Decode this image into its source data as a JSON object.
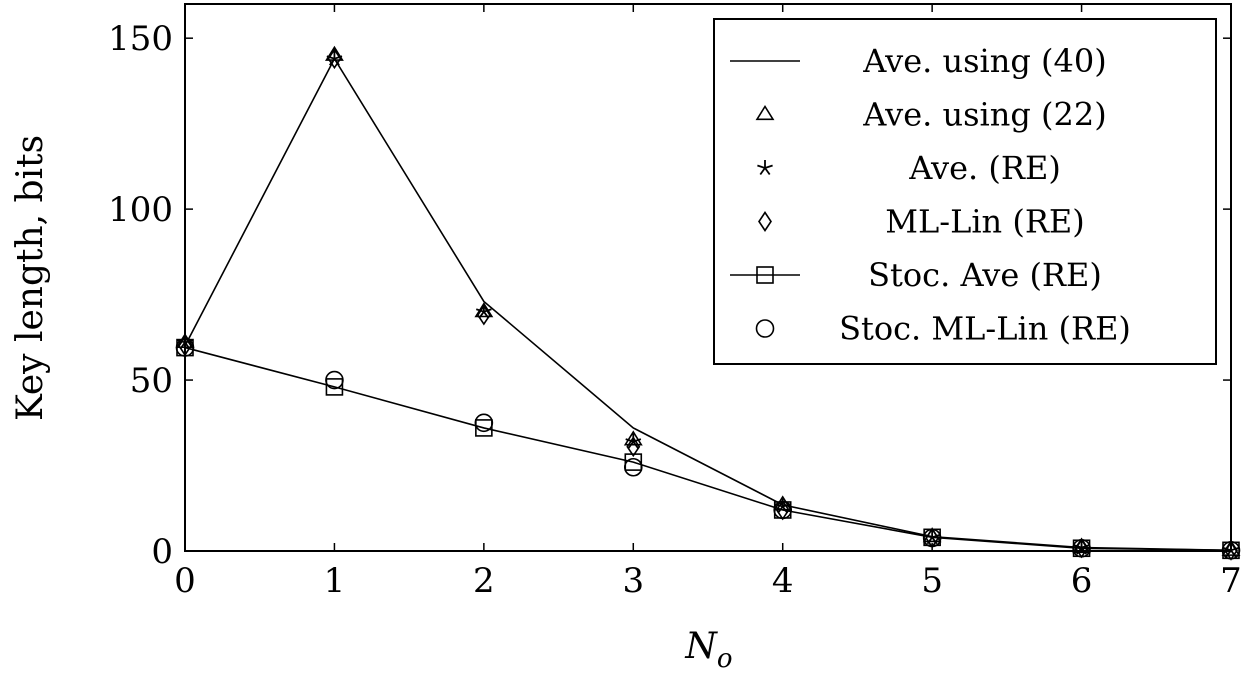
{
  "chart_data": {
    "type": "line",
    "x": [
      0,
      1,
      2,
      3,
      4,
      5,
      6,
      7
    ],
    "xlabel": "N_o",
    "ylabel": "Key length, bits",
    "xlim": [
      0,
      7
    ],
    "ylim": [
      0,
      160
    ],
    "xticks": [
      "0",
      "1",
      "2",
      "3",
      "4",
      "5",
      "6",
      "7"
    ],
    "yticks": [
      {
        "value": 0,
        "label": "0"
      },
      {
        "value": 50,
        "label": "50"
      },
      {
        "value": 100,
        "label": "100"
      },
      {
        "value": 150,
        "label": "150"
      }
    ],
    "grid": false,
    "legend_position": "top-right",
    "series": [
      {
        "name": "Ave. using (40)",
        "marker": "none",
        "line": true,
        "values": [
          60,
          144,
          73,
          36,
          13.5,
          4.2,
          1.0,
          0.2
        ]
      },
      {
        "name": "Ave. using (22)",
        "marker": "triangle",
        "line": false,
        "values": [
          61,
          145,
          70,
          32.5,
          13.5,
          4.2,
          1.0,
          0.2
        ]
      },
      {
        "name": "Ave. (RE)",
        "marker": "star",
        "line": false,
        "values": [
          61,
          144,
          70,
          32,
          13,
          4.0,
          1.0,
          0.2
        ]
      },
      {
        "name": "ML-Lin (RE)",
        "marker": "diamond",
        "line": false,
        "values": [
          60,
          144,
          69,
          30.5,
          12,
          3.8,
          0.9,
          0.2
        ]
      },
      {
        "name": "Stoc. Ave (RE)",
        "marker": "square",
        "line": true,
        "values": [
          59.5,
          48,
          36,
          26,
          12,
          4.0,
          0.8,
          0.2
        ]
      },
      {
        "name": "Stoc. ML-Lin (RE)",
        "marker": "circle",
        "line": false,
        "values": [
          59.5,
          50,
          37.5,
          24.5,
          12,
          3.8,
          0.8,
          0.2
        ]
      }
    ]
  }
}
